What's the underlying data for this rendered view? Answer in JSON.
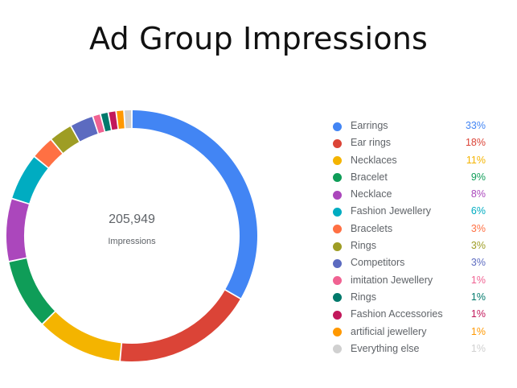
{
  "chart_data": {
    "type": "pie",
    "title": "Ad Group Impressions",
    "center": {
      "value": "205,949",
      "label": "Impressions"
    },
    "legend_position": "right",
    "slices": [
      {
        "label": "Earrings",
        "pct_label": "33%",
        "value": 33,
        "color": "#4285f4"
      },
      {
        "label": "Ear rings",
        "pct_label": "18%",
        "value": 18,
        "color": "#db4437"
      },
      {
        "label": "Necklaces",
        "pct_label": "11%",
        "value": 11,
        "color": "#f4b400"
      },
      {
        "label": "Bracelet",
        "pct_label": "9%",
        "value": 9,
        "color": "#0f9d58"
      },
      {
        "label": "Necklace",
        "pct_label": "8%",
        "value": 8,
        "color": "#ab47bc"
      },
      {
        "label": "Fashion Jewellery",
        "pct_label": "6%",
        "value": 6,
        "color": "#00acc1"
      },
      {
        "label": "Bracelets",
        "pct_label": "3%",
        "value": 3,
        "color": "#ff7043"
      },
      {
        "label": "Rings",
        "pct_label": "3%",
        "value": 3,
        "color": "#9e9d24"
      },
      {
        "label": "Competitors",
        "pct_label": "3%",
        "value": 3,
        "color": "#5c6bc0"
      },
      {
        "label": "imitation Jewellery",
        "pct_label": "1%",
        "value": 1,
        "color": "#f06292"
      },
      {
        "label": "Rings",
        "pct_label": "1%",
        "value": 1,
        "color": "#00796b"
      },
      {
        "label": "Fashion Accessories",
        "pct_label": "1%",
        "value": 1,
        "color": "#c2185b"
      },
      {
        "label": "artificial jewellery",
        "pct_label": "1%",
        "value": 1,
        "color": "#ff9800"
      },
      {
        "label": "Everything else",
        "pct_label": "1%",
        "value": 1,
        "color": "#d0d0d0"
      }
    ]
  }
}
